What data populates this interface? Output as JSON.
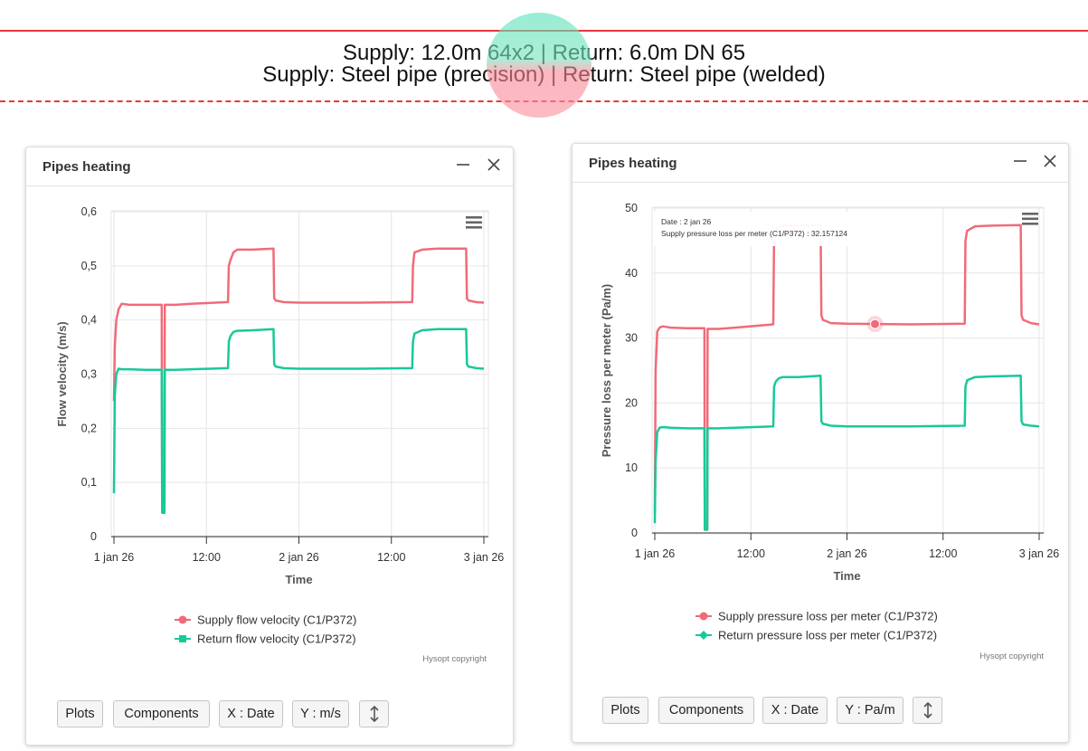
{
  "header": {
    "line1": "Supply: 12.0m 64x2 | Return: 6.0m DN 65",
    "line2": "Supply: Steel pipe (precision) | Return: Steel pipe (welded)"
  },
  "colors": {
    "supply": "#f06b7a",
    "return": "#17c999",
    "guide_line": "#e8383d"
  },
  "icons": [
    "minimize-icon",
    "close-icon",
    "hamburger-menu-icon",
    "vertical-arrows-icon"
  ],
  "panels": [
    {
      "title": "Pipes heating",
      "credits": "Hysopt copyright",
      "toolbar": {
        "plots": "Plots",
        "components": "Components",
        "x_axis": "X : Date",
        "y_axis": "Y : m/s"
      }
    },
    {
      "title": "Pipes heating",
      "credits": "Hysopt copyright",
      "toolbar": {
        "plots": "Plots",
        "components": "Components",
        "x_axis": "X : Date",
        "y_axis": "Y : Pa/m"
      },
      "tooltip": {
        "line1": "Date : 2 jan 26",
        "line2": "Supply pressure loss per meter (C1/P372) : 32.157124",
        "point_hours": 27.5,
        "point_value": 32.157124
      }
    }
  ],
  "chart_data": [
    {
      "type": "line",
      "xlabel": "Time",
      "ylabel": "Flow velocity (m/s)",
      "ylim": [
        0,
        0.6
      ],
      "y_ticks": [
        "0",
        "0,1",
        "0,2",
        "0,3",
        "0,4",
        "0,5",
        "0,6"
      ],
      "x_ticks": [
        "1 jan 26",
        "12:00",
        "2 jan 26",
        "12:00",
        "3 jan 26"
      ],
      "x_unit": "hours since 1 jan 26 00:00",
      "grid": true,
      "legend_position": "bottom-center",
      "series": [
        {
          "name": "Supply flow velocity (C1/P372)",
          "x": [
            0,
            0.1,
            0.3,
            0.6,
            1.0,
            2,
            4,
            6.2,
            6.25,
            6.4,
            6.55,
            6.6,
            8,
            10,
            14.8,
            14.9,
            15.1,
            15.5,
            16,
            18,
            20.7,
            20.8,
            21,
            22,
            24,
            28,
            32,
            38.7,
            38.8,
            39,
            40,
            42,
            45.7,
            45.8,
            46,
            47,
            48
          ],
          "values": [
            0.25,
            0.35,
            0.4,
            0.42,
            0.43,
            0.428,
            0.428,
            0.428,
            0.06,
            0.06,
            0.06,
            0.428,
            0.428,
            0.43,
            0.433,
            0.5,
            0.51,
            0.525,
            0.53,
            0.53,
            0.532,
            0.44,
            0.436,
            0.433,
            0.432,
            0.432,
            0.432,
            0.433,
            0.5,
            0.525,
            0.53,
            0.532,
            0.532,
            0.44,
            0.436,
            0.433,
            0.432
          ]
        },
        {
          "name": "Return flow velocity (C1/P372)",
          "x": [
            0,
            0.1,
            0.3,
            0.6,
            1.0,
            2,
            4,
            6.2,
            6.25,
            6.4,
            6.55,
            6.6,
            8,
            10,
            14.8,
            14.9,
            15.1,
            15.5,
            16,
            18,
            20.7,
            20.8,
            21,
            22,
            24,
            28,
            32,
            38.7,
            38.8,
            39,
            40,
            42,
            45.7,
            45.8,
            46,
            47,
            48
          ],
          "values": [
            0.08,
            0.26,
            0.3,
            0.31,
            0.309,
            0.309,
            0.308,
            0.308,
            0.044,
            0.044,
            0.044,
            0.308,
            0.308,
            0.309,
            0.311,
            0.36,
            0.37,
            0.378,
            0.38,
            0.381,
            0.383,
            0.318,
            0.314,
            0.311,
            0.31,
            0.31,
            0.31,
            0.311,
            0.36,
            0.375,
            0.381,
            0.383,
            0.383,
            0.318,
            0.314,
            0.311,
            0.31
          ]
        }
      ]
    },
    {
      "type": "line",
      "xlabel": "Time",
      "ylabel": "Pressure loss per meter (Pa/m)",
      "ylim": [
        0,
        50
      ],
      "y_ticks": [
        "0",
        "10",
        "20",
        "30",
        "40",
        "50"
      ],
      "x_ticks": [
        "1 jan 26",
        "12:00",
        "2 jan 26",
        "12:00",
        "3 jan 26"
      ],
      "x_unit": "hours since 1 jan 26 00:00",
      "grid": true,
      "legend_position": "bottom-center",
      "series": [
        {
          "name": "Supply pressure loss per meter (C1/P372)",
          "x": [
            0,
            0.1,
            0.3,
            0.6,
            1.0,
            2,
            4,
            6.2,
            6.25,
            6.4,
            6.55,
            6.6,
            8,
            10,
            14.8,
            14.9,
            15.1,
            15.5,
            16,
            18,
            20.7,
            20.8,
            21,
            22,
            24,
            28,
            32,
            38.7,
            38.8,
            39,
            40,
            42,
            45.7,
            45.8,
            46,
            47,
            48
          ],
          "values": [
            3,
            25,
            31,
            31.6,
            31.8,
            31.6,
            31.5,
            31.5,
            0.5,
            0.5,
            0.5,
            31.4,
            31.4,
            31.6,
            32.1,
            45.5,
            46.5,
            47.2,
            47.3,
            47.3,
            47.4,
            33.5,
            32.8,
            32.3,
            32.2,
            32.157124,
            32.1,
            32.2,
            45,
            46.5,
            47.2,
            47.3,
            47.4,
            33.5,
            32.8,
            32.3,
            32.1
          ]
        },
        {
          "name": "Return pressure loss per meter (C1/P372)",
          "x": [
            0,
            0.1,
            0.3,
            0.6,
            1.0,
            2,
            4,
            6.2,
            6.25,
            6.4,
            6.55,
            6.6,
            8,
            10,
            14.8,
            14.9,
            15.1,
            15.5,
            16,
            18,
            20.7,
            20.8,
            21,
            22,
            24,
            28,
            32,
            38.7,
            38.8,
            39,
            40,
            42,
            45.7,
            45.8,
            46,
            47,
            48
          ],
          "values": [
            1.5,
            11,
            15.5,
            16.2,
            16.3,
            16.2,
            16.1,
            16.1,
            0.5,
            0.5,
            0.5,
            16.1,
            16.1,
            16.2,
            16.4,
            22.5,
            23.3,
            23.8,
            24,
            24,
            24.2,
            17.2,
            16.8,
            16.5,
            16.4,
            16.4,
            16.4,
            16.5,
            22.5,
            23.5,
            24,
            24.1,
            24.2,
            17.2,
            16.7,
            16.5,
            16.4
          ]
        }
      ]
    }
  ]
}
